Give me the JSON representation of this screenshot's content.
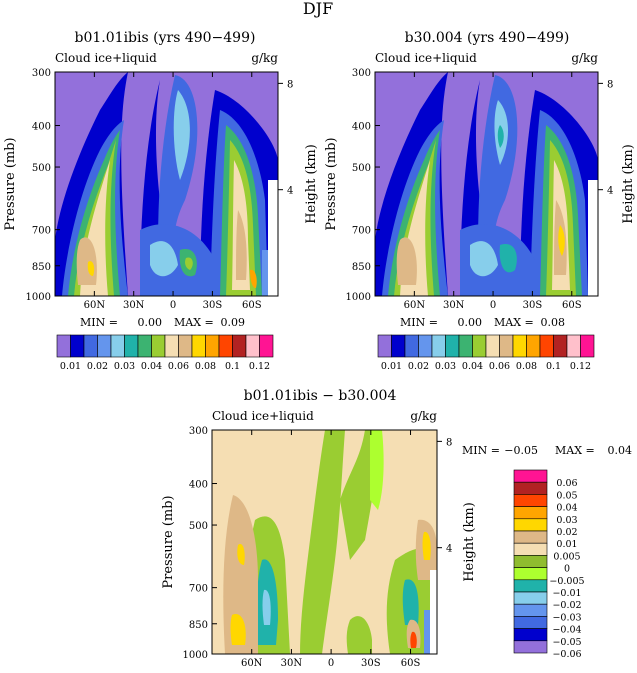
{
  "figure_title": "DJF",
  "chart_data": [
    {
      "type": "contour",
      "id": "p1",
      "title": "b01.01ibis (yrs 490−499)",
      "subtitle_left": "Cloud ice+liquid",
      "subtitle_right": "g/kg",
      "ylabel": "Pressure (mb)",
      "ylabel_right": "Height (km)",
      "yticks": [
        "300",
        "400",
        "500",
        "700",
        "850",
        "1000"
      ],
      "yticks_right": [
        "8",
        "4"
      ],
      "xticks": [
        "60N",
        "30N",
        "0",
        "30S",
        "60S"
      ],
      "stats_min_label": "MIN =",
      "stats_min": "0.00",
      "stats_max_label": "MAX =",
      "stats_max": "0.09",
      "colorbar_labels": [
        "0.01",
        "0.02",
        "0.03",
        "0.04",
        "0.06",
        "0.08",
        "0.1",
        "0.12"
      ]
    },
    {
      "type": "contour",
      "id": "p2",
      "title": "b30.004 (yrs 490−499)",
      "subtitle_left": "Cloud ice+liquid",
      "subtitle_right": "g/kg",
      "ylabel": "Pressure (mb)",
      "ylabel_right": "Height (km)",
      "yticks": [
        "300",
        "400",
        "500",
        "700",
        "850",
        "1000"
      ],
      "yticks_right": [
        "8",
        "4"
      ],
      "xticks": [
        "60N",
        "30N",
        "0",
        "30S",
        "60S"
      ],
      "stats_min_label": "MIN =",
      "stats_min": "0.00",
      "stats_max_label": "MAX =",
      "stats_max": "0.08",
      "colorbar_labels": [
        "0.01",
        "0.02",
        "0.03",
        "0.04",
        "0.06",
        "0.08",
        "0.1",
        "0.12"
      ]
    },
    {
      "type": "contour",
      "id": "p3",
      "title": "b01.01ibis − b30.004",
      "subtitle_left": "Cloud ice+liquid",
      "subtitle_right": "g/kg",
      "ylabel": "Pressure (mb)",
      "ylabel_right": "Height (km)",
      "yticks": [
        "300",
        "400",
        "500",
        "700",
        "850",
        "1000"
      ],
      "yticks_right": [
        "8",
        "4"
      ],
      "xticks": [
        "60N",
        "30N",
        "0",
        "30S",
        "60S"
      ],
      "stats_min_label": "MIN =",
      "stats_min": "−0.05",
      "stats_max_label": "MAX =",
      "stats_max": "0.04",
      "colorbar_labels": [
        "0.06",
        "0.05",
        "0.04",
        "0.03",
        "0.02",
        "0.01",
        "0.005",
        "0",
        "−0.005",
        "−0.01",
        "−0.02",
        "−0.03",
        "−0.04",
        "−0.05",
        "−0.06"
      ]
    }
  ],
  "colors": {
    "abs_scale": [
      "#9370db",
      "#0000cd",
      "#4169e1",
      "#6495ed",
      "#87ceeb",
      "#20b2aa",
      "#3cb371",
      "#9acd32",
      "#f5deb3",
      "#deb887",
      "#ffd700",
      "#ffa500",
      "#ff4500",
      "#b22222",
      "#ffc0cb",
      "#ff1493"
    ],
    "diff_scale": [
      "#ff1493",
      "#b22222",
      "#ff4500",
      "#ffa500",
      "#ffd700",
      "#deb887",
      "#f5deb3",
      "#8fbc2f",
      "#adff2f",
      "#20b2aa",
      "#87ceeb",
      "#6495ed",
      "#4169e1",
      "#0000cd",
      "#9370db"
    ]
  }
}
